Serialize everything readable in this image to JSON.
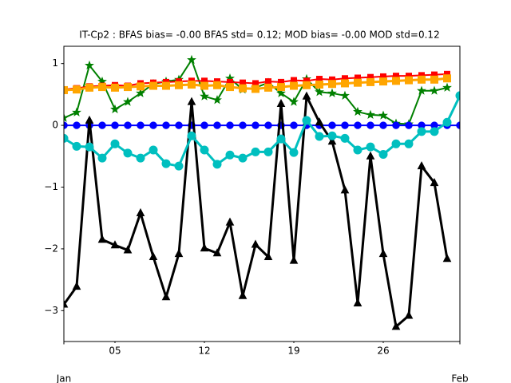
{
  "chart_data": {
    "type": "line",
    "title": "IT-Cp2   : BFAS bias= -0.00 BFAS std= 0.12; MOD bias= -0.00 MOD std=0.12",
    "x": [
      1,
      2,
      3,
      4,
      5,
      6,
      7,
      8,
      9,
      10,
      11,
      12,
      13,
      14,
      15,
      16,
      17,
      18,
      19,
      20,
      21,
      22,
      23,
      24,
      25,
      26,
      27,
      28,
      29,
      30,
      31,
      32
    ],
    "xlim": [
      1,
      32
    ],
    "xticks": [
      {
        "value": 5,
        "label": "05"
      },
      {
        "value": 12,
        "label": "12"
      },
      {
        "value": 19,
        "label": "19"
      },
      {
        "value": 26,
        "label": "26"
      }
    ],
    "xticks_major": [
      {
        "value": 1,
        "label": "Jan"
      },
      {
        "value": 32,
        "label": "Feb"
      }
    ],
    "ylim": [
      -3.5,
      1.28
    ],
    "yticks": [
      1,
      0,
      {
        "value": -1,
        "label": "−1"
      },
      {
        "value": -2,
        "label": "−2"
      },
      {
        "value": -3,
        "label": "−3"
      }
    ],
    "series": [
      {
        "color": "#008000",
        "marker": "star",
        "linewidth": 2,
        "values": [
          0.12,
          0.21,
          0.97,
          0.71,
          0.26,
          0.38,
          0.52,
          0.67,
          0.71,
          0.74,
          1.06,
          0.47,
          0.41,
          0.76,
          0.58,
          0.61,
          0.69,
          0.52,
          0.38,
          0.75,
          0.54,
          0.52,
          0.48,
          0.22,
          0.17,
          0.16,
          0.03,
          0.02,
          0.56,
          0.56,
          0.61,
          null
        ]
      },
      {
        "color": "#ff0000",
        "marker": "square",
        "linewidth": 2,
        "values": [
          0.58,
          0.6,
          0.63,
          0.64,
          0.65,
          0.64,
          0.68,
          0.69,
          0.7,
          0.71,
          0.72,
          0.72,
          0.71,
          0.7,
          0.69,
          0.68,
          0.71,
          0.7,
          0.73,
          0.72,
          0.75,
          0.74,
          0.76,
          0.77,
          0.78,
          0.79,
          0.8,
          0.8,
          0.81,
          0.82,
          0.83,
          null
        ]
      },
      {
        "color": "#ffa500",
        "marker": "bigsquare",
        "linewidth": 3,
        "values": [
          0.57,
          0.58,
          0.61,
          0.62,
          0.61,
          0.62,
          0.63,
          0.64,
          0.64,
          0.65,
          0.66,
          0.64,
          0.65,
          0.62,
          0.6,
          0.59,
          0.61,
          0.62,
          0.64,
          0.65,
          0.66,
          0.67,
          0.68,
          0.69,
          0.7,
          0.71,
          0.72,
          0.73,
          0.74,
          0.74,
          0.76,
          null
        ]
      },
      {
        "color": "#0000ff",
        "marker": "circle",
        "linewidth": 2,
        "values": [
          0,
          0,
          0,
          0,
          0,
          0,
          0,
          0,
          0,
          0,
          0,
          0,
          0,
          0,
          0,
          0,
          0,
          0,
          0,
          0,
          0,
          0,
          0,
          0,
          0,
          0,
          0,
          0,
          0,
          0,
          0,
          0
        ]
      },
      {
        "color": "#000000",
        "marker": "triangle",
        "linewidth": 3,
        "values": [
          -2.9,
          -2.61,
          0.08,
          -1.85,
          -1.94,
          -2.02,
          -1.42,
          -2.13,
          -2.78,
          -2.08,
          0.38,
          -1.99,
          -2.07,
          -1.57,
          -2.76,
          -1.93,
          -2.13,
          0.35,
          -2.19,
          0.47,
          0.05,
          -0.26,
          -1.05,
          -2.88,
          -0.5,
          -2.08,
          -3.26,
          -3.08,
          -0.66,
          -0.93,
          -2.16,
          null
        ]
      },
      {
        "color": "#00bfbf",
        "marker": "bigcircle",
        "linewidth": 3,
        "values": [
          -0.21,
          -0.34,
          -0.35,
          -0.53,
          -0.3,
          -0.45,
          -0.53,
          -0.4,
          -0.62,
          -0.66,
          -0.17,
          -0.4,
          -0.63,
          -0.48,
          -0.53,
          -0.43,
          -0.43,
          -0.22,
          -0.44,
          0.08,
          -0.18,
          -0.17,
          -0.21,
          -0.4,
          -0.35,
          -0.47,
          -0.3,
          -0.3,
          -0.1,
          -0.1,
          0.05,
          0.48
        ]
      }
    ]
  }
}
